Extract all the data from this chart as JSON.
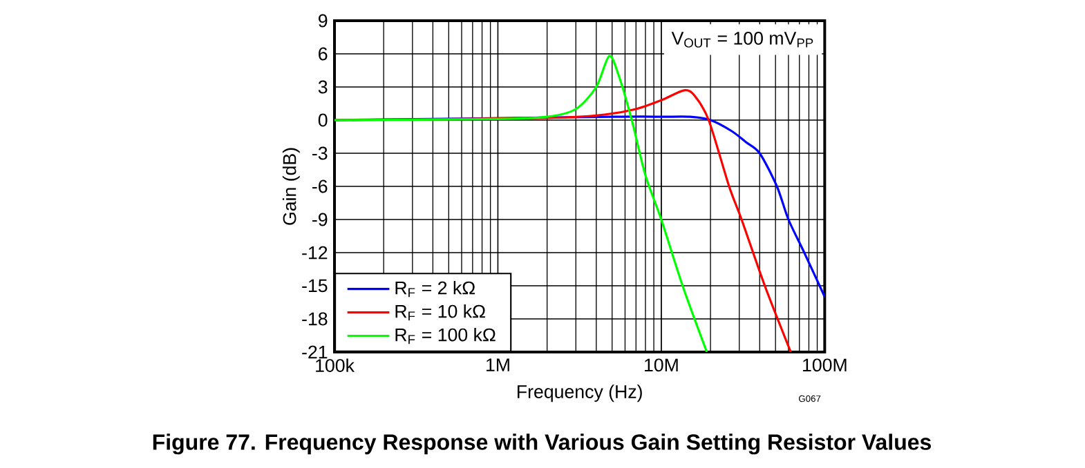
{
  "chart_data": {
    "type": "line",
    "title": "Figure 77.  Frequency Response with Various Gain Setting Resistor Values",
    "xlabel": "Frequency (Hz)",
    "ylabel": "Gain (dB)",
    "log": "x",
    "grid": true,
    "legend": "bottom left",
    "xlim": [
      100000,
      100000000
    ],
    "xticks": [
      {
        "value": 100000,
        "label": "100k"
      },
      {
        "value": 1000000,
        "label": "1M"
      },
      {
        "value": 10000000,
        "label": "10M"
      },
      {
        "value": 100000000,
        "label": "100M"
      }
    ],
    "ylim": [
      -21,
      9
    ],
    "yticks": [
      -21,
      -18,
      -15,
      -12,
      -9,
      -6,
      -3,
      0,
      3,
      6,
      9
    ],
    "annotations": [
      "V$_{OUT}$ = 100 mV$_{PP}$",
      "G067"
    ],
    "series": [
      {
        "name": "R$_{F}$ = 2 kΩ",
        "color": "#0000ff",
        "x": [
          100000,
          1000000,
          5000000,
          10000000,
          15000000,
          20000000,
          27000000,
          33000000,
          40000000,
          51000000,
          60000000,
          75000000,
          100000000
        ],
        "values": [
          0,
          null,
          0.3,
          0.3,
          0.3,
          0,
          -1,
          -2,
          -3,
          -6,
          -9,
          -12,
          -16
        ]
      },
      {
        "name": "R$_{F}$ = 10 kΩ",
        "color": "#ff0000",
        "x": [
          100000,
          1000000,
          2000000,
          4500000,
          7000000,
          10000000,
          13800000,
          16000000,
          19500000,
          26000000,
          31000000,
          43000000,
          62000000
        ],
        "values": [
          0,
          null,
          0.2,
          0.5,
          1,
          1.8,
          2.7,
          2.2,
          0,
          -6,
          -9,
          -15,
          -21
        ]
      },
      {
        "name": "R$_{F}$ = 100 kΩ",
        "color": "#00ff00",
        "x": [
          100000,
          1000000,
          2000000,
          3000000,
          4000000,
          4800000,
          5500000,
          6600000,
          8000000,
          10000000,
          13500000,
          19000000
        ],
        "values": [
          0,
          0.1,
          0.3,
          1,
          3,
          5.8,
          4,
          0,
          -5,
          -9,
          -15,
          -21
        ]
      }
    ]
  }
}
